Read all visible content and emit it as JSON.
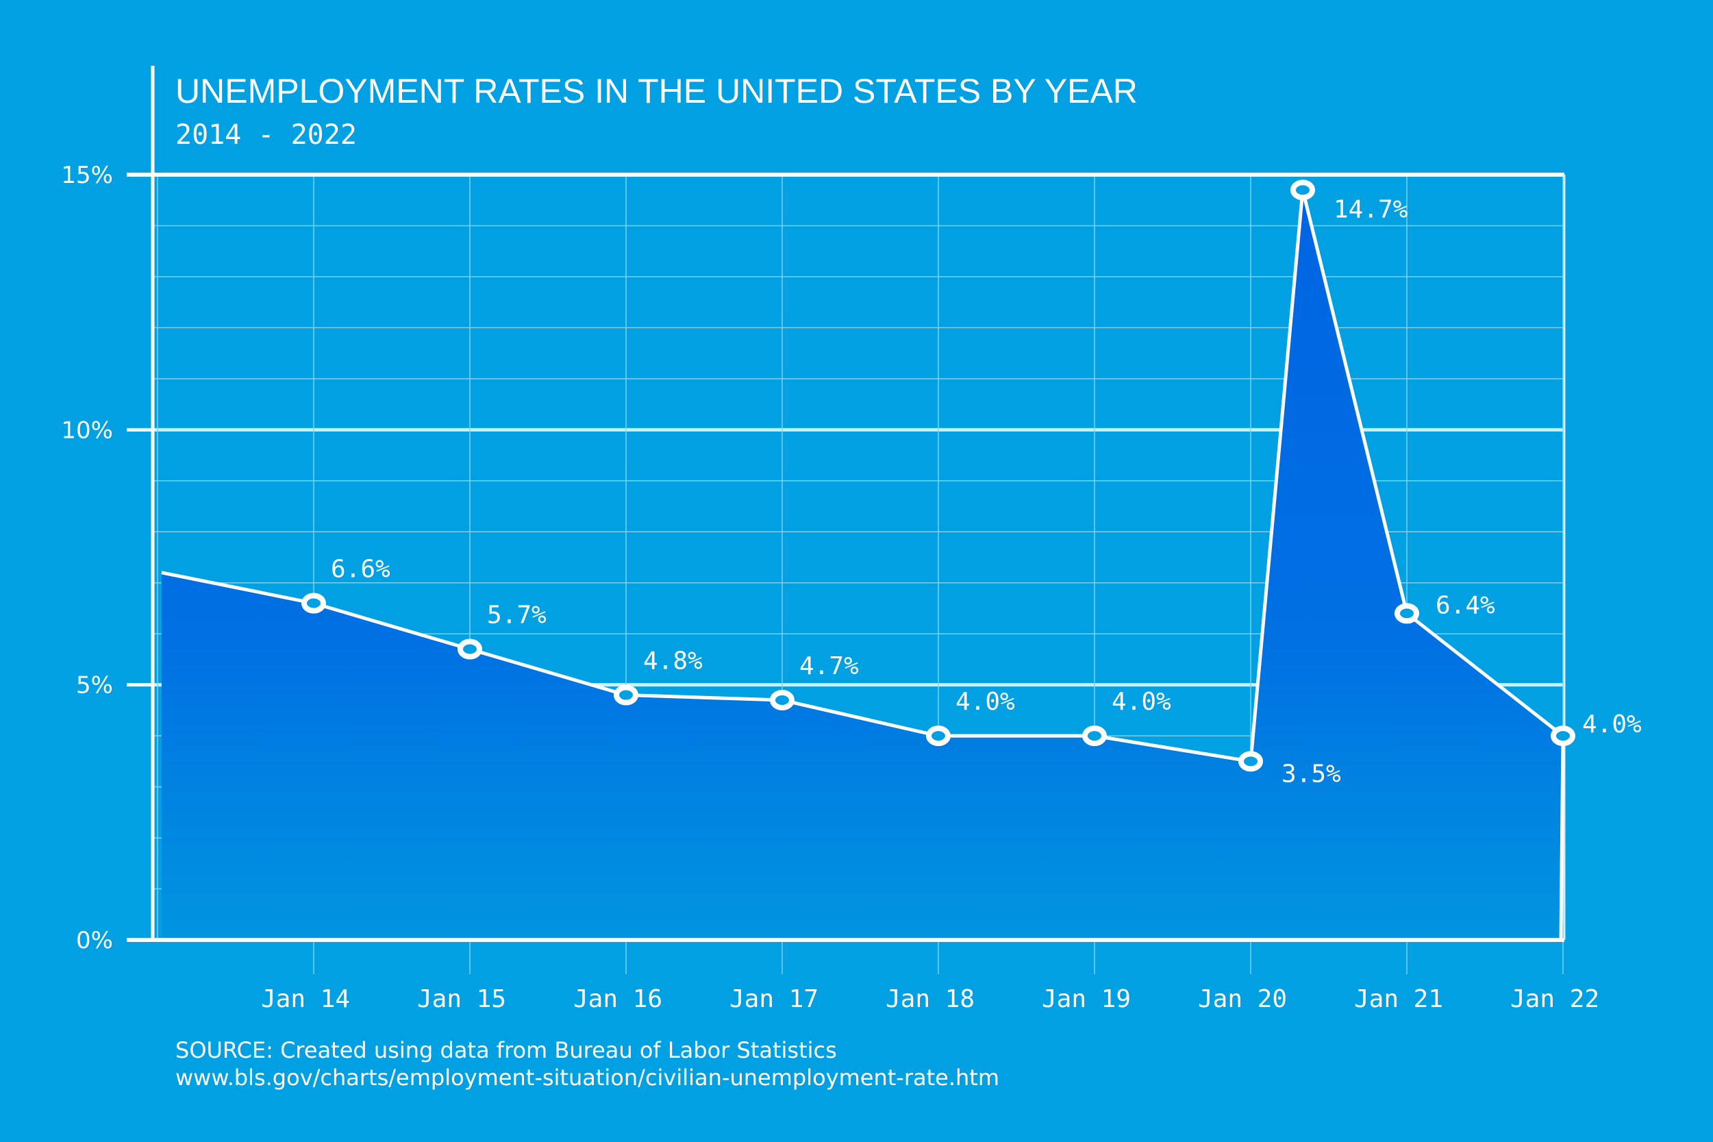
{
  "chart_data": {
    "type": "area",
    "title": "UNEMPLOYMENT RATES IN THE UNITED STATES BY YEAR",
    "subtitle": "2014 - 2022",
    "xlabel": "",
    "ylabel": "",
    "ylim": [
      0,
      15
    ],
    "y_ticks": [
      "0%",
      "5%",
      "10%",
      "15%"
    ],
    "x_ticks": [
      "Jan 14",
      "Jan 15",
      "Jan 16",
      "Jan 17",
      "Jan 18",
      "Jan 19",
      "Jan 20",
      "Jan 21",
      "Jan 22"
    ],
    "grid": true,
    "points": [
      {
        "date": "2013-01",
        "value": 7.2,
        "label": ""
      },
      {
        "date": "2014-01",
        "value": 6.6,
        "label": "6.6%"
      },
      {
        "date": "2015-01",
        "value": 5.7,
        "label": "5.7%"
      },
      {
        "date": "2016-01",
        "value": 4.8,
        "label": "4.8%"
      },
      {
        "date": "2017-01",
        "value": 4.7,
        "label": "4.7%"
      },
      {
        "date": "2018-01",
        "value": 4.0,
        "label": "4.0%"
      },
      {
        "date": "2019-01",
        "value": 4.0,
        "label": "4.0%"
      },
      {
        "date": "2020-01",
        "value": 3.5,
        "label": "3.5%"
      },
      {
        "date": "2020-05",
        "value": 14.7,
        "label": "14.7%"
      },
      {
        "date": "2021-01",
        "value": 6.4,
        "label": "6.4%"
      },
      {
        "date": "2022-01",
        "value": 4.0,
        "label": "4.0%"
      }
    ],
    "colors": {
      "background": "#00a0e3",
      "fill_top": "#0064e2",
      "fill_bottom": "#0095e0",
      "line": "#ffffff"
    }
  },
  "source": {
    "line1": "SOURCE: Created using data from Bureau of Labor Statistics",
    "line2": "www.bls.gov/charts/employment-situation/civilian-unemployment-rate.htm"
  }
}
